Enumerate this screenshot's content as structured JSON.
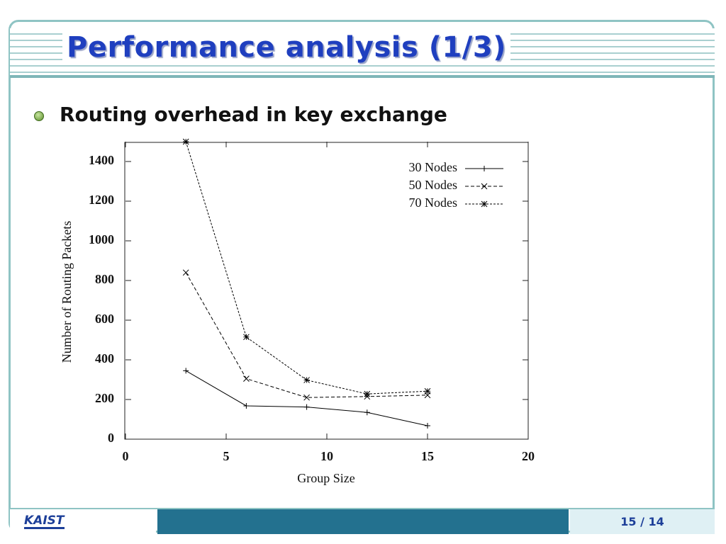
{
  "title": "Performance analysis (1/3)",
  "bullet": "Routing overhead in key exchange",
  "footer": {
    "logo": "KAIST",
    "page": "15 / 14"
  },
  "chart_data": {
    "type": "line",
    "xlabel": "Group Size",
    "ylabel": "Number of Routing Packets",
    "x": [
      3,
      6,
      9,
      12,
      15
    ],
    "series": [
      {
        "name": "30 Nodes",
        "color": "#000000",
        "marker": "+",
        "dash": "solid",
        "values": [
          345,
          168,
          162,
          135,
          68
        ]
      },
      {
        "name": "50 Nodes",
        "color": "#000000",
        "marker": "x",
        "dash": "dashed",
        "values": [
          840,
          305,
          210,
          215,
          222
        ]
      },
      {
        "name": "70 Nodes",
        "color": "#000000",
        "marker": "*",
        "dash": "dotted",
        "values": [
          1500,
          515,
          298,
          228,
          242
        ]
      }
    ],
    "xlim": [
      0,
      20
    ],
    "xticks": [
      0,
      5,
      10,
      15,
      20
    ],
    "ylim": [
      0,
      1500
    ],
    "yticks": [
      0,
      200,
      400,
      600,
      800,
      1000,
      1200,
      1400
    ],
    "legend": "upper right",
    "grid": false
  }
}
